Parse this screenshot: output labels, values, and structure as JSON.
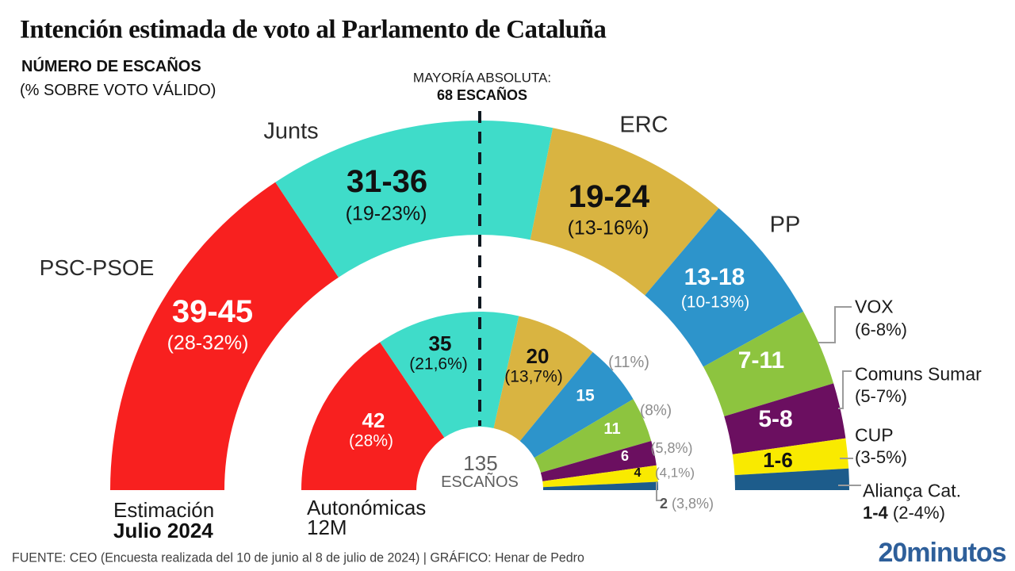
{
  "title": "Intención estimada de voto al Parlamento de Cataluña",
  "subtitle_line1": "NÚMERO DE ESCAÑOS",
  "subtitle_line2": "(% SOBRE VOTO VÁLIDO)",
  "majority": {
    "line1": "MAYORÍA ABSOLUTA:",
    "line2": "68 ESCAÑOS"
  },
  "center": {
    "total": "135",
    "unit": "ESCAÑOS"
  },
  "legend": {
    "outer_line1": "Estimación",
    "outer_line2": "Julio 2024",
    "inner_line1": "Autonómicas",
    "inner_line2": "12M"
  },
  "footer": {
    "source": "FUENTE: CEO (Encuesta realizada del 10 de junio al 8 de julio de 2024)  |  GRÁFICO: Henar de Pedro",
    "logo": "20minutos",
    "logo_color": "#2e5f9a"
  },
  "chart_data": {
    "type": "hemicycle half-donut, two concentric rings",
    "total_seats": 135,
    "majority_seats": 68,
    "rings": [
      {
        "name": "Estimación Julio 2024",
        "position": "outer",
        "values_key": "est_seats"
      },
      {
        "name": "Autonómicas 12M",
        "position": "inner",
        "values_key": "prev_seats"
      }
    ],
    "parties": [
      {
        "name": "PSC-PSOE",
        "color": "#f8201f",
        "est_seats": "39-45",
        "est_pct": "(28-32%)",
        "prev_seats": "42",
        "prev_pct": "(28%)"
      },
      {
        "name": "Junts",
        "color": "#3fdcc9",
        "est_seats": "31-36",
        "est_pct": "(19-23%)",
        "prev_seats": "35",
        "prev_pct": "(21,6%)"
      },
      {
        "name": "ERC",
        "color": "#d9b441",
        "est_seats": "19-24",
        "est_pct": "(13-16%)",
        "prev_seats": "20",
        "prev_pct": "(13,7%)"
      },
      {
        "name": "PP",
        "color": "#2d94cb",
        "est_seats": "13-18",
        "est_pct": "(10-13%)",
        "prev_seats": "15",
        "prev_pct": "(11%)"
      },
      {
        "name": "VOX",
        "color": "#8dc43f",
        "est_seats": "7-11",
        "est_pct": "(6-8%)",
        "prev_seats": "11",
        "prev_pct": "(8%)"
      },
      {
        "name": "Comuns Sumar",
        "color": "#6b0f60",
        "est_seats": "5-8",
        "est_pct": "(5-7%)",
        "prev_seats": "6",
        "prev_pct": "(5,8%)"
      },
      {
        "name": "CUP",
        "color": "#f9ea00",
        "est_seats": "1-6",
        "est_pct": "(3-5%)",
        "prev_seats": "4",
        "prev_pct": "(4,1%)"
      },
      {
        "name": "Aliança Cat.",
        "color": "#1d5c8b",
        "est_seats": "1-4",
        "est_pct": "(2-4%)",
        "prev_seats": "2",
        "prev_pct": "(3,8%)"
      }
    ]
  }
}
